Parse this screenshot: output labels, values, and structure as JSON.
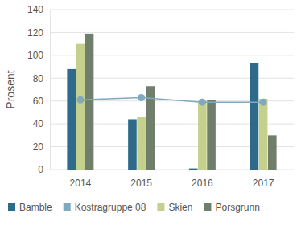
{
  "chart_data": {
    "type": "bar",
    "categories": [
      "2014",
      "2015",
      "2016",
      "2017"
    ],
    "series": [
      {
        "name": "Bamble",
        "type": "bar",
        "color": "#2e6b8a",
        "values": [
          88,
          44,
          1,
          93
        ]
      },
      {
        "name": "Kostragruppe 08",
        "type": "line",
        "marker": "circle",
        "color": "#7fa9bf",
        "values": [
          61,
          63,
          59,
          59
        ]
      },
      {
        "name": "Skien",
        "type": "bar",
        "color": "#c5d08c",
        "values": [
          110,
          46,
          60,
          62
        ]
      },
      {
        "name": "Porsgrunn",
        "type": "bar",
        "color": "#6f7f6b",
        "values": [
          119,
          73,
          61,
          30
        ]
      }
    ],
    "y_label": "Prosent",
    "ylim": [
      0,
      140
    ],
    "yticks": [
      0,
      20,
      40,
      60,
      80,
      100,
      120,
      140
    ],
    "grid": true,
    "legend": "bottom"
  }
}
